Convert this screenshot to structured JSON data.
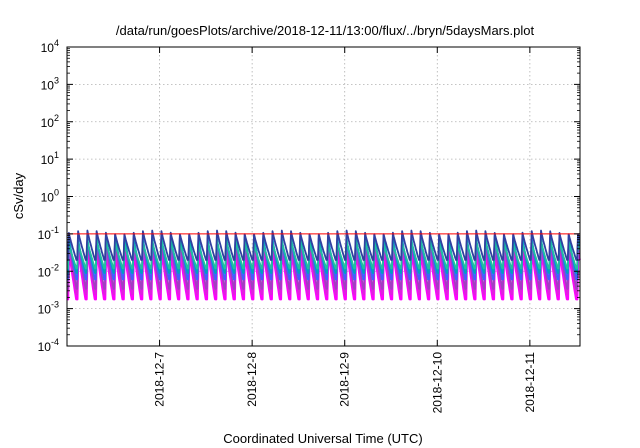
{
  "chart_data": {
    "type": "line",
    "title": "/data/run/goesPlots/archive/2018-12-11/13:00/flux/../bryn/5daysMars.plot",
    "xlabel": "Coordinated Universal Time (UTC)",
    "ylabel": "cSv/day",
    "xlim": [
      "2018-12-06T00:00",
      "2018-12-11T13:00"
    ],
    "ylim": [
      0.0001,
      10000
    ],
    "yscale": "log",
    "grid": true,
    "x_ticks": [
      "2018-12-7",
      "2018-12-8",
      "2018-12-9",
      "2018-12-10",
      "2018-12-11"
    ],
    "y_ticks": [
      {
        "base": "10",
        "exp": "-4"
      },
      {
        "base": "10",
        "exp": "-3"
      },
      {
        "base": "10",
        "exp": "-2"
      },
      {
        "base": "10",
        "exp": "-1"
      },
      {
        "base": "10",
        "exp": "0"
      },
      {
        "base": "10",
        "exp": "1"
      },
      {
        "base": "10",
        "exp": "2"
      },
      {
        "base": "10",
        "exp": "3"
      },
      {
        "base": "10",
        "exp": "4"
      }
    ],
    "reference_line": {
      "y": 0.1,
      "color": "#ff0000"
    },
    "cycle_days": 0.1,
    "series": [
      {
        "color": "#ff00ff",
        "peak": 0.045,
        "trough": 0.0018
      },
      {
        "color": "#e020e0",
        "peak": 0.055,
        "trough": 0.0024
      },
      {
        "color": "#a040c0",
        "peak": 0.07,
        "trough": 0.0034
      },
      {
        "color": "#4060ff",
        "peak": 0.085,
        "trough": 0.006
      },
      {
        "color": "#00a0c0",
        "peak": 0.075,
        "trough": 0.009
      },
      {
        "color": "#20c0a0",
        "peak": 0.06,
        "trough": 0.012
      },
      {
        "color": "#3040a0",
        "peak": 0.11,
        "trough": 0.02
      }
    ]
  }
}
